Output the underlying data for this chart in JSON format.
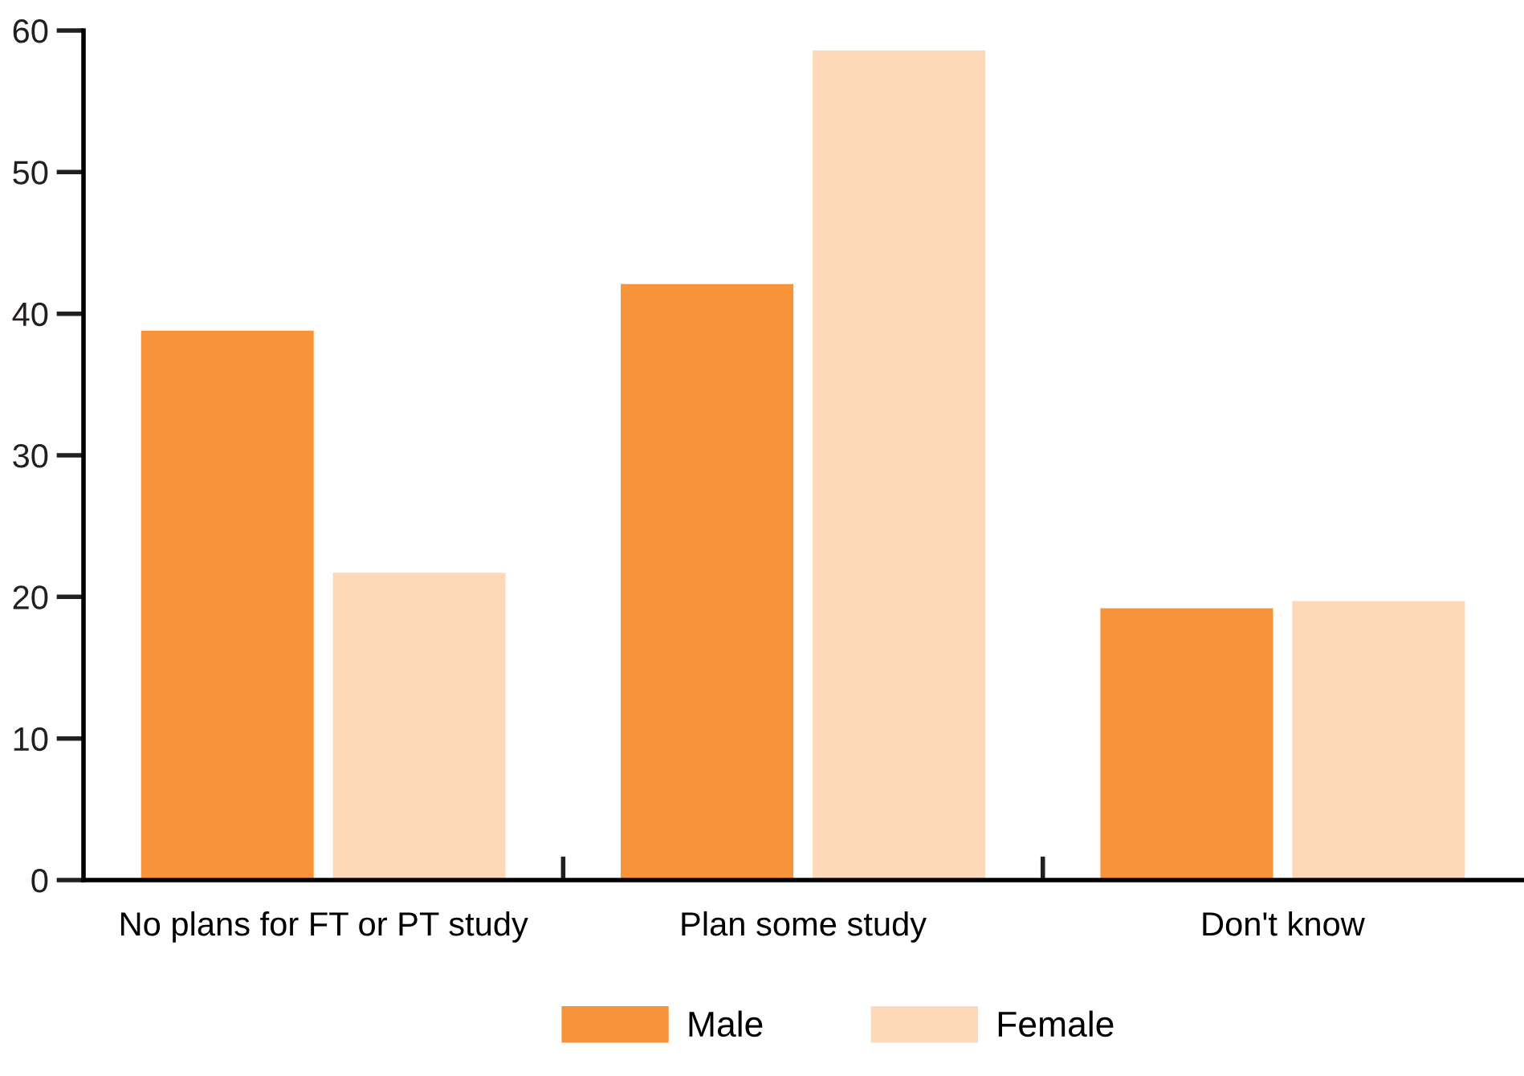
{
  "chart_data": {
    "type": "bar",
    "categories": [
      "No plans for FT or PT study",
      "Plan some study",
      "Don't know"
    ],
    "series": [
      {
        "name": "Male",
        "color": "#f7943a",
        "values": [
          38.8,
          42.1,
          19.2
        ]
      },
      {
        "name": "Female",
        "color": "#fdd9b9",
        "values": [
          21.7,
          58.6,
          19.7
        ]
      }
    ],
    "ylim": [
      0,
      60
    ],
    "yticks": [
      0,
      10,
      20,
      30,
      40,
      50,
      60
    ],
    "grid": false,
    "legend": "bottom"
  }
}
